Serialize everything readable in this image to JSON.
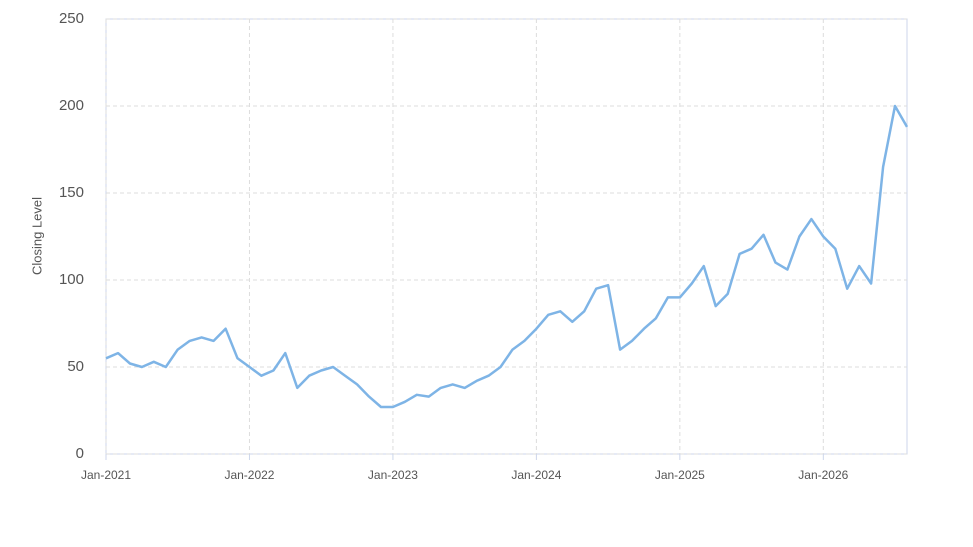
{
  "chart_data": {
    "type": "line",
    "y_label": "Closing Level",
    "x": [
      "2021-01",
      "2021-02",
      "2021-03",
      "2021-04",
      "2021-05",
      "2021-06",
      "2021-07",
      "2021-08",
      "2021-09",
      "2021-10",
      "2021-11",
      "2021-12",
      "2022-01",
      "2022-02",
      "2022-03",
      "2022-04",
      "2022-05",
      "2022-06",
      "2022-07",
      "2022-08",
      "2022-09",
      "2022-10",
      "2022-11",
      "2022-12",
      "2023-01",
      "2023-02",
      "2023-03",
      "2023-04",
      "2023-05",
      "2023-06",
      "2023-07",
      "2023-08",
      "2023-09",
      "2023-10",
      "2023-11",
      "2023-12",
      "2024-01",
      "2024-02",
      "2024-03",
      "2024-04",
      "2024-05",
      "2024-06",
      "2024-07",
      "2024-08",
      "2024-09",
      "2024-10",
      "2024-11",
      "2024-12",
      "2025-01",
      "2025-02",
      "2025-03",
      "2025-04",
      "2025-05",
      "2025-06",
      "2025-07",
      "2025-08",
      "2025-09",
      "2025-10",
      "2025-11",
      "2025-12",
      "2026-01",
      "2026-02",
      "2026-03",
      "2026-04",
      "2026-05",
      "2026-06",
      "2026-07",
      "2026-08"
    ],
    "series": [
      {
        "name": "Closing Level",
        "color": "#7eb4e6",
        "values": [
          55,
          58,
          52,
          50,
          53,
          50,
          60,
          65,
          67,
          65,
          72,
          55,
          50,
          45,
          48,
          58,
          38,
          45,
          48,
          50,
          45,
          40,
          33,
          27,
          27,
          30,
          34,
          33,
          38,
          40,
          38,
          42,
          45,
          50,
          60,
          65,
          72,
          80,
          82,
          76,
          82,
          95,
          97,
          60,
          65,
          72,
          78,
          90,
          90,
          98,
          108,
          85,
          92,
          115,
          118,
          126,
          110,
          106,
          125,
          135,
          125,
          118,
          95,
          108,
          98,
          165,
          200,
          188
        ]
      }
    ],
    "xlim": [
      "2021-01",
      "2026-08"
    ],
    "xticks": [
      {
        "value": "2021-01",
        "label": "Jan-2021"
      },
      {
        "value": "2022-01",
        "label": "Jan-2022"
      },
      {
        "value": "2023-01",
        "label": "Jan-2023"
      },
      {
        "value": "2024-01",
        "label": "Jan-2024"
      },
      {
        "value": "2025-01",
        "label": "Jan-2025"
      },
      {
        "value": "2026-01",
        "label": "Jan-2026"
      }
    ],
    "ylim": [
      0,
      250
    ],
    "yticks": [
      0,
      50,
      100,
      150,
      200,
      250
    ],
    "grid": true
  }
}
